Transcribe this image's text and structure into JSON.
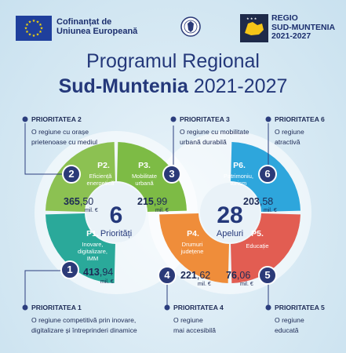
{
  "header": {
    "eu_line1": "Cofinanțat de",
    "eu_line2": "Uniunea Europeană",
    "regio_line1": "REGIO",
    "regio_line2": "SUD-MUNTENIA",
    "regio_line3": "2021-2027"
  },
  "title": {
    "line1": "Programul Regional",
    "line2_bold": "Sud-Muntenia",
    "line2_rest": " 2021-2027"
  },
  "center": {
    "priorities_count": "6",
    "priorities_label": "Priorități",
    "calls_count": "28",
    "calls_label": "Apeluri"
  },
  "priorities": [
    {
      "num": "1",
      "label": "PRIORITATEA 1",
      "desc1": "O regiune competitivă prin inovare,",
      "desc2": "digitalizare și întreprinderi dinamice",
      "code": "P1.",
      "seg1": "Inovare,",
      "seg2": "digitalizare,",
      "seg3": "IMM",
      "int": "413",
      "dec": ",94",
      "unit": "mil. €",
      "color": "#2aa99a"
    },
    {
      "num": "2",
      "label": "PRIORITATEA 2",
      "desc1": "O regiune cu orașe",
      "desc2": "prietenoase cu mediul",
      "code": "P2.",
      "seg1": "Eficiență",
      "seg2": "energetică",
      "seg3": "",
      "int": "365",
      "dec": ",50",
      "unit": "mil. €",
      "color": "#8cc152"
    },
    {
      "num": "3",
      "label": "PRIORITATEA 3",
      "desc1": "O regiune cu mobilitate",
      "desc2": "urbană durabilă",
      "code": "P3.",
      "seg1": "Mobilitate",
      "seg2": "urbană",
      "seg3": "",
      "int": "215",
      "dec": ",99",
      "unit": "mil. €",
      "color": "#7dbb45"
    },
    {
      "num": "4",
      "label": "PRIORITATEA 4",
      "desc1": "O regiune",
      "desc2": "mai accesibilă",
      "code": "P4.",
      "seg1": "Drumuri",
      "seg2": "județene",
      "seg3": "",
      "int": "221",
      "dec": ",62",
      "unit": "mil. €",
      "color": "#ef8d3a"
    },
    {
      "num": "5",
      "label": "PRIORITATEA 5",
      "desc1": "O regiune",
      "desc2": "educată",
      "code": "P5.",
      "seg1": "Educație",
      "seg2": "",
      "seg3": "",
      "int": "76",
      "dec": ",06",
      "unit": "mil. €",
      "color": "#e25d52"
    },
    {
      "num": "6",
      "label": "PRIORITATEA 6",
      "desc1": "O regiune",
      "desc2": "atractivă",
      "code": "P6.",
      "seg1": "Patrimoniu,",
      "seg2": "turism",
      "seg3": "",
      "int": "203",
      "dec": ",58",
      "unit": "mil. €",
      "color": "#2ea6dc"
    }
  ],
  "colors": {
    "navy": "#2b3a78",
    "title": "#24387a",
    "background": "#d7e9f4"
  }
}
